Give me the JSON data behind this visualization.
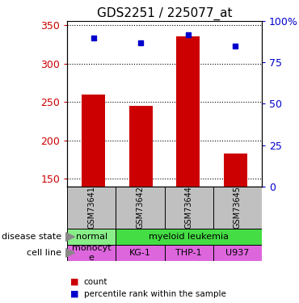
{
  "title": "GDS2251 / 225077_at",
  "samples": [
    "GSM73641",
    "GSM73642",
    "GSM73644",
    "GSM73645"
  ],
  "counts": [
    260,
    245,
    335,
    183
  ],
  "percentiles": [
    90,
    87,
    92,
    85
  ],
  "ylim_left": [
    140,
    355
  ],
  "ylim_right": [
    0,
    100
  ],
  "yticks_left": [
    150,
    200,
    250,
    300,
    350
  ],
  "yticks_right": [
    0,
    25,
    50,
    75,
    100
  ],
  "bar_color": "#cc0000",
  "dot_color": "#0000cc",
  "disease_states": [
    "normal",
    "myeloid leukemia",
    "myeloid leukemia",
    "myeloid leukemia"
  ],
  "cell_lines": [
    "monocyte",
    "KG-1",
    "THP-1",
    "U937"
  ],
  "color_normal": "#88ee88",
  "color_leukemia": "#44dd44",
  "color_cell_line": "#dd66dd",
  "color_cell_line_first": "#dd88dd",
  "sample_bg_color": "#c0c0c0",
  "legend_count_label": "count",
  "legend_pct_label": "percentile rank within the sample",
  "disease_label": "disease state",
  "cell_line_label": "cell line",
  "title_fontsize": 11,
  "tick_fontsize": 9,
  "table_fontsize": 8,
  "sample_fontsize": 7
}
